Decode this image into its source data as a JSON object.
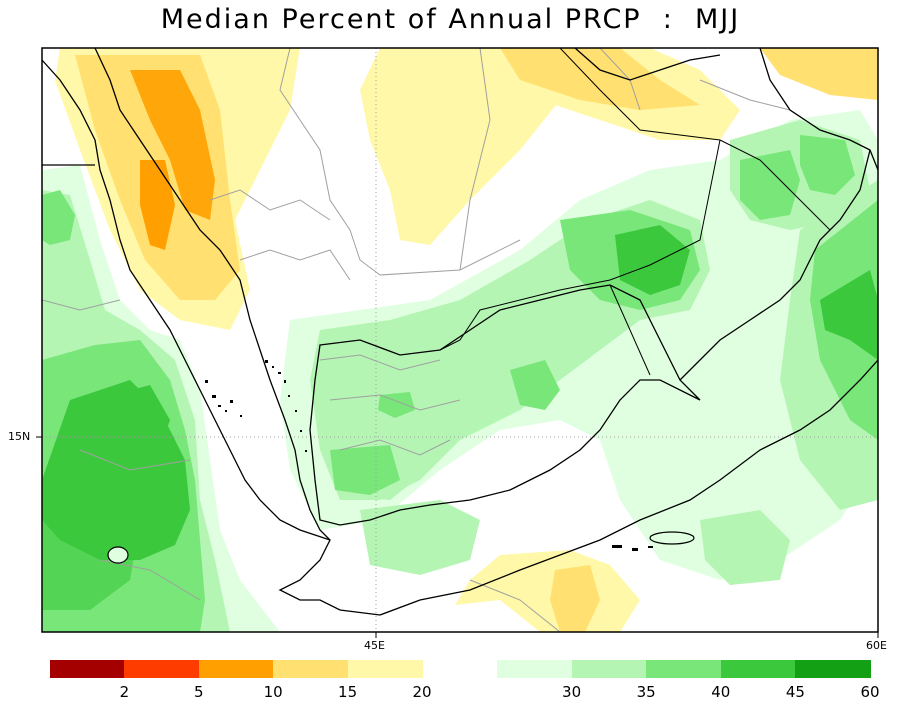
{
  "title": "Median Percent of Annual PRCP  :  MJJ",
  "map": {
    "x_axis_labels": [
      "45E",
      "60E"
    ],
    "y_axis_labels": [
      "15N"
    ],
    "colors": {
      "land_border": "#000000",
      "admin_border": "#a0a0a0",
      "grid": "#a0a0a0"
    }
  },
  "colorbar": {
    "low": {
      "colors": [
        "#a50000",
        "#ff3c00",
        "#ffa000",
        "#ffe070",
        "#fff8a8"
      ],
      "ticks": [
        "2",
        "5",
        "10",
        "15",
        "20"
      ]
    },
    "high": {
      "colors": [
        "#e0ffe0",
        "#b4f5b4",
        "#78e678",
        "#3cc83c",
        "#14a014"
      ],
      "ticks": [
        "30",
        "35",
        "40",
        "45",
        "60"
      ]
    }
  }
}
